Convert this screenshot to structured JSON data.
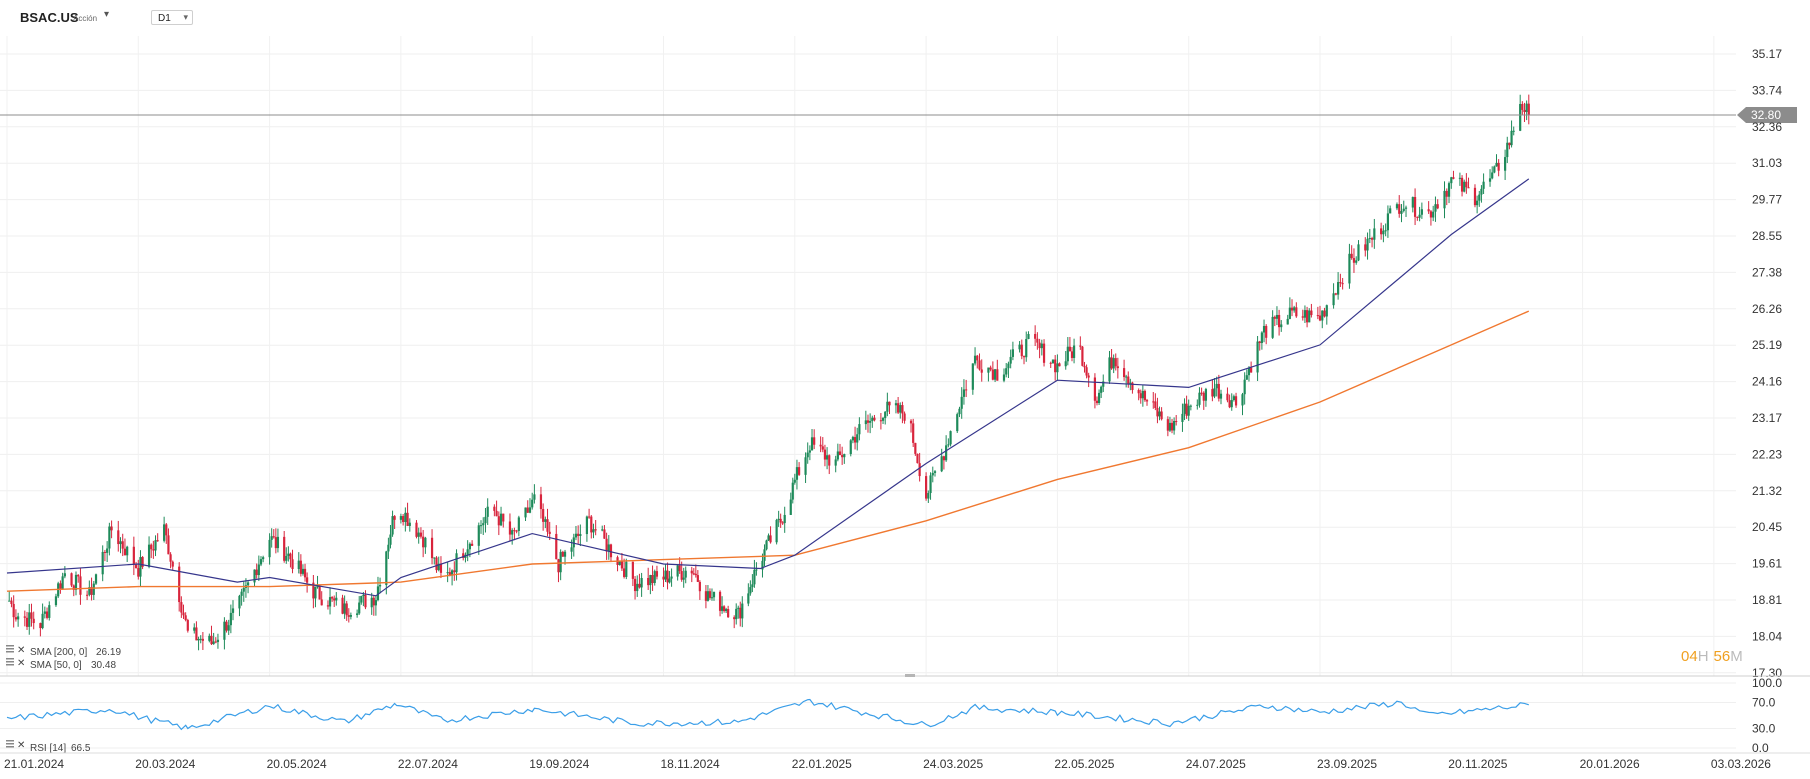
{
  "header": {
    "symbol": "BSAC.US",
    "asset_type": "Acción",
    "timeframe": "D1"
  },
  "price_label": "32.80",
  "timer": {
    "hours": "04",
    "h": "H",
    "minutes": "56",
    "m": "M"
  },
  "indicators": {
    "sma200": {
      "label": "SMA [200, 0]",
      "value": "26.19"
    },
    "sma50": {
      "label": "SMA [50, 0]",
      "value": "30.48"
    },
    "rsi": {
      "label": "RSI [14]",
      "value": "66.5"
    }
  },
  "colors": {
    "bull": "#1e8a5a",
    "bear": "#d8243c",
    "sma50": "#36368c",
    "sma200": "#f07830",
    "rsi": "#3a9ee8",
    "price_line": "#8c8c8c",
    "timer": "#f0a020"
  },
  "chart_data": {
    "type": "candlestick",
    "title": "BSAC.US D1",
    "price_axis_ticks": [
      "35.17",
      "33.74",
      "32.36",
      "31.03",
      "29.77",
      "28.55",
      "27.38",
      "26.26",
      "25.19",
      "24.16",
      "23.17",
      "22.23",
      "21.32",
      "20.45",
      "19.61",
      "18.81",
      "18.04",
      "17.30"
    ],
    "rsi_axis_ticks": [
      "100.0",
      "70.0",
      "30.0",
      "0.0"
    ],
    "date_labels": [
      "21.01.2024",
      "20.03.2024",
      "20.05.2024",
      "22.07.2024",
      "19.09.2024",
      "18.11.2024",
      "22.01.2025",
      "24.03.2025",
      "22.05.2025",
      "24.07.2025",
      "23.09.2025",
      "20.11.2025",
      "20.01.2026",
      "03.03.2026"
    ],
    "last_price": 32.8,
    "anchors": [
      {
        "date": "21.01.2024",
        "close": 18.9
      },
      {
        "date": "25.01.2024",
        "close": 18.5
      },
      {
        "date": "05.02.2024",
        "close": 18.3
      },
      {
        "date": "16.02.2024",
        "close": 19.4
      },
      {
        "date": "27.02.2024",
        "close": 18.9
      },
      {
        "date": "08.03.2024",
        "close": 20.4
      },
      {
        "date": "20.03.2024",
        "close": 19.5
      },
      {
        "date": "01.04.2024",
        "close": 20.4
      },
      {
        "date": "12.04.2024",
        "close": 18.1
      },
      {
        "date": "23.04.2024",
        "close": 17.9
      },
      {
        "date": "05.05.2024",
        "close": 18.6
      },
      {
        "date": "20.05.2024",
        "close": 20.2
      },
      {
        "date": "29.05.2024",
        "close": 19.8
      },
      {
        "date": "10.06.2024",
        "close": 19.0
      },
      {
        "date": "25.06.2024",
        "close": 18.6
      },
      {
        "date": "10.07.2024",
        "close": 18.9
      },
      {
        "date": "20.07.2024",
        "close": 21.0
      },
      {
        "date": "01.08.2024",
        "close": 20.2
      },
      {
        "date": "10.08.2024",
        "close": 19.2
      },
      {
        "date": "20.08.2024",
        "close": 20.0
      },
      {
        "date": "01.09.2024",
        "close": 20.9
      },
      {
        "date": "10.09.2024",
        "close": 20.2
      },
      {
        "date": "20.09.2024",
        "close": 21.1
      },
      {
        "date": "01.10.2024",
        "close": 19.6
      },
      {
        "date": "15.10.2024",
        "close": 20.6
      },
      {
        "date": "25.10.2024",
        "close": 19.9
      },
      {
        "date": "05.11.2024",
        "close": 19.2
      },
      {
        "date": "18.11.2024",
        "close": 19.3
      },
      {
        "date": "02.12.2024",
        "close": 19.5
      },
      {
        "date": "10.12.2024",
        "close": 18.9
      },
      {
        "date": "25.12.2024",
        "close": 18.5
      },
      {
        "date": "05.01.2025",
        "close": 19.7
      },
      {
        "date": "15.01.2025",
        "close": 20.6
      },
      {
        "date": "29.01.2025",
        "close": 22.5
      },
      {
        "date": "10.02.2025",
        "close": 22.0
      },
      {
        "date": "20.02.2025",
        "close": 22.8
      },
      {
        "date": "05.03.2025",
        "close": 23.4
      },
      {
        "date": "15.03.2025",
        "close": 23.3
      },
      {
        "date": "24.03.2025",
        "close": 21.2
      },
      {
        "date": "01.04.2025",
        "close": 22.3
      },
      {
        "date": "15.04.2025",
        "close": 24.8
      },
      {
        "date": "25.04.2025",
        "close": 24.4
      },
      {
        "date": "10.05.2025",
        "close": 25.3
      },
      {
        "date": "22.05.2025",
        "close": 24.6
      },
      {
        "date": "01.06.2025",
        "close": 25.2
      },
      {
        "date": "10.06.2025",
        "close": 23.7
      },
      {
        "date": "18.06.2025",
        "close": 24.9
      },
      {
        "date": "01.07.2025",
        "close": 23.8
      },
      {
        "date": "15.07.2025",
        "close": 22.9
      },
      {
        "date": "24.07.2025",
        "close": 23.5
      },
      {
        "date": "05.08.2025",
        "close": 24.0
      },
      {
        "date": "15.08.2025",
        "close": 23.6
      },
      {
        "date": "28.08.2025",
        "close": 25.6
      },
      {
        "date": "10.09.2025",
        "close": 26.1
      },
      {
        "date": "23.09.2025",
        "close": 26.0
      },
      {
        "date": "05.10.2025",
        "close": 27.6
      },
      {
        "date": "15.10.2025",
        "close": 28.4
      },
      {
        "date": "29.10.2025",
        "close": 29.7
      },
      {
        "date": "10.11.2025",
        "close": 29.3
      },
      {
        "date": "20.11.2025",
        "close": 30.4
      },
      {
        "date": "01.12.2025",
        "close": 29.9
      },
      {
        "date": "10.12.2025",
        "close": 30.6
      },
      {
        "date": "18.12.2025",
        "close": 32.0
      },
      {
        "date": "22.12.2025",
        "close": 33.3
      },
      {
        "date": "26.12.2025",
        "close": 32.8
      }
    ],
    "sma50_points": [
      {
        "date": "21.01.2024",
        "value": 19.4
      },
      {
        "date": "20.03.2024",
        "value": 19.6
      },
      {
        "date": "05.05.2024",
        "value": 19.2
      },
      {
        "date": "20.05.2024",
        "value": 19.3
      },
      {
        "date": "10.07.2024",
        "value": 18.9
      },
      {
        "date": "22.07.2024",
        "value": 19.3
      },
      {
        "date": "19.09.2024",
        "value": 20.3
      },
      {
        "date": "18.11.2024",
        "value": 19.6
      },
      {
        "date": "05.01.2025",
        "value": 19.5
      },
      {
        "date": "22.01.2025",
        "value": 19.8
      },
      {
        "date": "24.03.2025",
        "value": 22.0
      },
      {
        "date": "22.05.2025",
        "value": 24.2
      },
      {
        "date": "24.07.2025",
        "value": 24.0
      },
      {
        "date": "23.09.2025",
        "value": 25.2
      },
      {
        "date": "20.11.2025",
        "value": 28.6
      },
      {
        "date": "26.12.2025",
        "value": 30.48
      }
    ],
    "sma200_points": [
      {
        "date": "21.01.2024",
        "value": 19.0
      },
      {
        "date": "20.03.2024",
        "value": 19.1
      },
      {
        "date": "20.05.2024",
        "value": 19.1
      },
      {
        "date": "22.07.2024",
        "value": 19.2
      },
      {
        "date": "19.09.2024",
        "value": 19.6
      },
      {
        "date": "18.11.2024",
        "value": 19.7
      },
      {
        "date": "22.01.2025",
        "value": 19.8
      },
      {
        "date": "24.03.2025",
        "value": 20.6
      },
      {
        "date": "22.05.2025",
        "value": 21.6
      },
      {
        "date": "24.07.2025",
        "value": 22.4
      },
      {
        "date": "23.09.2025",
        "value": 23.6
      },
      {
        "date": "20.11.2025",
        "value": 25.2
      },
      {
        "date": "26.12.2025",
        "value": 26.19
      }
    ],
    "rsi_points": [
      {
        "date": "21.01.2024",
        "value": 45
      },
      {
        "date": "08.03.2024",
        "value": 60
      },
      {
        "date": "20.03.2024",
        "value": 48
      },
      {
        "date": "12.04.2024",
        "value": 30
      },
      {
        "date": "20.05.2024",
        "value": 65
      },
      {
        "date": "25.06.2024",
        "value": 40
      },
      {
        "date": "20.07.2024",
        "value": 68
      },
      {
        "date": "10.08.2024",
        "value": 42
      },
      {
        "date": "20.09.2024",
        "value": 60
      },
      {
        "date": "05.11.2024",
        "value": 38
      },
      {
        "date": "25.12.2024",
        "value": 40
      },
      {
        "date": "29.01.2025",
        "value": 72
      },
      {
        "date": "24.03.2025",
        "value": 35
      },
      {
        "date": "15.04.2025",
        "value": 62
      },
      {
        "date": "22.05.2025",
        "value": 55
      },
      {
        "date": "15.07.2025",
        "value": 38
      },
      {
        "date": "28.08.2025",
        "value": 65
      },
      {
        "date": "23.09.2025",
        "value": 55
      },
      {
        "date": "29.10.2025",
        "value": 70
      },
      {
        "date": "10.11.2025",
        "value": 50
      },
      {
        "date": "26.12.2025",
        "value": 66.5
      }
    ]
  }
}
